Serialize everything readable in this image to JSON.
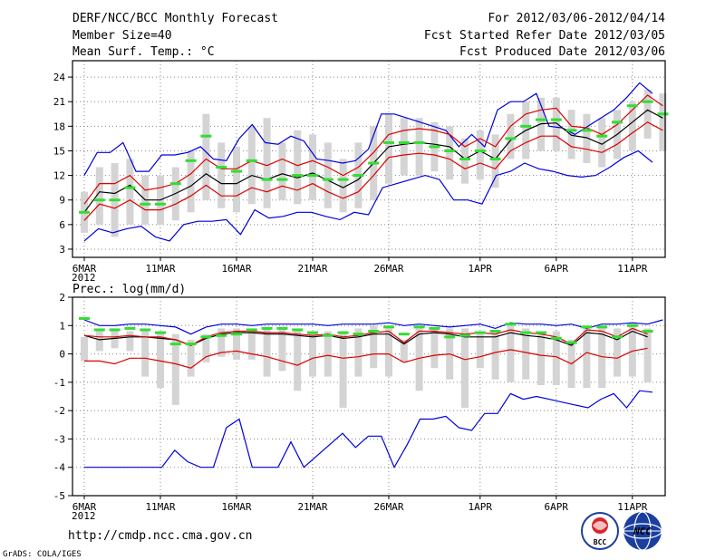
{
  "header": {
    "title": "DERF/NCC/BCC Monthly Forecast",
    "member_size": "Member Size=40",
    "for_range": "For 2012/03/06-2012/04/14",
    "fcst_started": "Fcst Started Refer Date 2012/03/05",
    "fcst_produced": "Fcst Produced Date 2012/03/06"
  },
  "footer": {
    "url": "http://cmdp.ncc.cma.gov.cn",
    "credit": "GrADS: COLA/IGES",
    "logos": [
      "BCC",
      "NCC"
    ]
  },
  "colors": {
    "max_min": "#0000dd",
    "ens_mean": "#000000",
    "spread": "#dd0000",
    "box": "#d4d4d4",
    "obs": "#33dd33"
  },
  "chart_data": [
    {
      "type": "line",
      "title": "Mean Surf. Temp.: °C",
      "x_ticks": [
        "6MAR\n2012",
        "11MAR",
        "16MAR",
        "21MAR",
        "26MAR",
        "1APR",
        "6APR",
        "11APR"
      ],
      "x_tick_days": [
        0,
        5,
        10,
        15,
        20,
        26,
        31,
        36
      ],
      "days": 40,
      "ylim": [
        2,
        26
      ],
      "yticks": [
        3,
        6,
        9,
        12,
        15,
        18,
        21,
        24
      ],
      "series": [
        {
          "name": "Ensemble Max",
          "color": "#0000dd",
          "values": [
            12,
            14.8,
            14.8,
            16,
            12.5,
            12.5,
            14.5,
            14.5,
            14.8,
            15.5,
            14,
            13.8,
            16.5,
            18.2,
            16,
            15.8,
            16.8,
            16.2,
            14,
            13.8,
            13.5,
            13.8,
            15.2,
            19.5,
            19.5,
            19,
            18.5,
            18,
            17.5,
            15.5,
            17,
            15.5,
            20,
            21,
            21,
            22,
            18,
            17.8,
            17,
            18,
            19,
            20,
            21.5,
            23.3,
            22
          ]
        },
        {
          "name": "Ensemble Min",
          "color": "#0000dd",
          "values": [
            4,
            5.5,
            5,
            5.5,
            5.8,
            4.5,
            4,
            6,
            6.4,
            6.4,
            6.6,
            4.8,
            7.8,
            6.8,
            7,
            7.5,
            7.5,
            7,
            6.6,
            7.5,
            7.2,
            10.5,
            11,
            11.5,
            12,
            11.5,
            9,
            9,
            8.5,
            12,
            12.5,
            13.5,
            12.8,
            12.5,
            12,
            11.8,
            12,
            13,
            14.2,
            15,
            13.6
          ]
        },
        {
          "name": "Ensemble Mean",
          "color": "#000000",
          "values": [
            7.5,
            10,
            9.8,
            10.8,
            9,
            9,
            9.8,
            10.7,
            12.2,
            11,
            11,
            12,
            11.5,
            12.2,
            11.7,
            12.3,
            11.4,
            10.5,
            11.5,
            13.5,
            15.5,
            15.8,
            16,
            15.8,
            15.5,
            14,
            15,
            14,
            16.3,
            17.5,
            18.3,
            18.4,
            16.9,
            16.6,
            15.8,
            17,
            18.5,
            20,
            19
          ]
        },
        {
          "name": "Mean + Std",
          "color": "#dd0000",
          "values": [
            8.5,
            11,
            11,
            12,
            10.2,
            10.5,
            11,
            12.2,
            14,
            12.8,
            12.8,
            13.8,
            13.2,
            14,
            13.2,
            13.8,
            13,
            12,
            13,
            14.8,
            17,
            17.5,
            17.7,
            17.5,
            17,
            15.5,
            16.5,
            15.5,
            18,
            19.5,
            20,
            20.2,
            18,
            17.8,
            17,
            18.2,
            20,
            21.8,
            20.5
          ]
        },
        {
          "name": "Mean - Std",
          "color": "#dd0000",
          "values": [
            6.5,
            8.5,
            8,
            9,
            7.8,
            7.8,
            8.5,
            9.5,
            10.8,
            9.5,
            9.5,
            10.5,
            10,
            10.7,
            10.2,
            11,
            10,
            9.2,
            10,
            12,
            14.2,
            14.5,
            14.7,
            14.5,
            14,
            12.8,
            13.5,
            12.8,
            15,
            16,
            16.8,
            16.8,
            15.5,
            15.2,
            14.8,
            15.8,
            17.2,
            18.5,
            17.5
          ]
        }
      ],
      "boxes": [
        {
          "day": 0,
          "low": 5,
          "high": 10
        },
        {
          "day": 1,
          "low": 6,
          "high": 13
        },
        {
          "day": 2,
          "low": 4.5,
          "high": 13.5
        },
        {
          "day": 3,
          "low": 6,
          "high": 14
        },
        {
          "day": 4,
          "low": 6,
          "high": 12
        },
        {
          "day": 5,
          "low": 6,
          "high": 12
        },
        {
          "day": 6,
          "low": 6.5,
          "high": 13
        },
        {
          "day": 7,
          "low": 7.5,
          "high": 15
        },
        {
          "day": 8,
          "low": 9,
          "high": 19.5
        },
        {
          "day": 9,
          "low": 8,
          "high": 16
        },
        {
          "day": 10,
          "low": 7.5,
          "high": 15.5
        },
        {
          "day": 11,
          "low": 8.5,
          "high": 18
        },
        {
          "day": 12,
          "low": 8,
          "high": 19
        },
        {
          "day": 13,
          "low": 9,
          "high": 16
        },
        {
          "day": 14,
          "low": 8.5,
          "high": 17.5
        },
        {
          "day": 15,
          "low": 9,
          "high": 17
        },
        {
          "day": 16,
          "low": 8,
          "high": 16
        },
        {
          "day": 17,
          "low": 7.5,
          "high": 14
        },
        {
          "day": 18,
          "low": 8,
          "high": 16
        },
        {
          "day": 19,
          "low": 9,
          "high": 18
        },
        {
          "day": 20,
          "low": 11,
          "high": 19.5
        },
        {
          "day": 21,
          "low": 12,
          "high": 19
        },
        {
          "day": 22,
          "low": 12,
          "high": 19
        },
        {
          "day": 23,
          "low": 12.5,
          "high": 18.5
        },
        {
          "day": 24,
          "low": 11.5,
          "high": 18
        },
        {
          "day": 25,
          "low": 11,
          "high": 16.5
        },
        {
          "day": 26,
          "low": 11.5,
          "high": 17.5
        },
        {
          "day": 27,
          "low": 10.5,
          "high": 17
        },
        {
          "day": 28,
          "low": 14,
          "high": 19.5
        },
        {
          "day": 29,
          "low": 14,
          "high": 21
        },
        {
          "day": 30,
          "low": 15,
          "high": 21.5
        },
        {
          "day": 31,
          "low": 15,
          "high": 21.5
        },
        {
          "day": 32,
          "low": 14,
          "high": 20
        },
        {
          "day": 33,
          "low": 13.5,
          "high": 19.5
        },
        {
          "day": 34,
          "low": 13,
          "high": 19
        },
        {
          "day": 35,
          "low": 14,
          "high": 20
        },
        {
          "day": 36,
          "low": 15,
          "high": 21
        },
        {
          "day": 37,
          "low": 16.5,
          "high": 22.5
        },
        {
          "day": 38,
          "low": 15,
          "high": 22
        }
      ],
      "obs": [
        7.5,
        9,
        9,
        10.5,
        8.5,
        8.5,
        11,
        13.8,
        16.8,
        13,
        12.5,
        13.8,
        11.5,
        11.5,
        12,
        12,
        11.5,
        11.5,
        12,
        13.5,
        16,
        16,
        16,
        15.5,
        15,
        14,
        15,
        14,
        16.5,
        18,
        18.8,
        18.8,
        17.5,
        17.5,
        16.8,
        18.5,
        20.5,
        21,
        19.5
      ]
    },
    {
      "type": "line",
      "title": "Prec.: log(mm/d)",
      "x_ticks": [
        "6MAR\n2012",
        "11MAR",
        "16MAR",
        "21MAR",
        "26MAR",
        "1APR",
        "6APR",
        "11APR"
      ],
      "x_tick_days": [
        0,
        5,
        10,
        15,
        20,
        26,
        31,
        36
      ],
      "days": 40,
      "ylim": [
        -5,
        2
      ],
      "yticks": [
        -5,
        -4,
        -3,
        -2,
        -1,
        0,
        1,
        2
      ],
      "series": [
        {
          "name": "Ensemble Max",
          "color": "#0000dd",
          "values": [
            1.2,
            1,
            1,
            1.05,
            1.05,
            1,
            0.95,
            0.7,
            0.95,
            1.05,
            1.05,
            1,
            1.05,
            1.05,
            1.05,
            1.05,
            1,
            1.05,
            1.05,
            1.05,
            1.1,
            1,
            1.05,
            1,
            0.95,
            1,
            1.05,
            0.9,
            1.1,
            1.05,
            1.05,
            1,
            1.05,
            0.9,
            1.05,
            1.05,
            1.1,
            1.05,
            1.2
          ]
        },
        {
          "name": "Ensemble Min",
          "color": "#0000dd",
          "values": [
            -4,
            -4,
            -4,
            -4,
            -4,
            -4,
            -4,
            -3.4,
            -3.8,
            -4,
            -4,
            -2.6,
            -2.3,
            -4,
            -4,
            -4,
            -3.1,
            -4,
            -3.6,
            -3.2,
            -2.8,
            -3.3,
            -2.9,
            -2.9,
            -4,
            -3.2,
            -2.3,
            -2.3,
            -2.2,
            -2.6,
            -2.7,
            -2.1,
            -2.1,
            -1.4,
            -1.6,
            -1.5,
            -1.6,
            -1.7,
            -1.8,
            -1.9,
            -1.6,
            -1.4,
            -1.9,
            -1.3,
            -1.35
          ]
        },
        {
          "name": "Ensemble Mean",
          "color": "#000000",
          "values": [
            0.65,
            0.5,
            0.55,
            0.6,
            0.6,
            0.55,
            0.5,
            0.3,
            0.55,
            0.7,
            0.75,
            0.75,
            0.7,
            0.7,
            0.65,
            0.6,
            0.65,
            0.55,
            0.6,
            0.7,
            0.7,
            0.35,
            0.7,
            0.75,
            0.7,
            0.6,
            0.6,
            0.6,
            0.75,
            0.65,
            0.6,
            0.5,
            0.3,
            0.75,
            0.7,
            0.5,
            0.8,
            0.6
          ]
        },
        {
          "name": "Mean + Std",
          "color": "#dd0000",
          "values": [
            0.65,
            0.6,
            0.6,
            0.65,
            0.6,
            0.6,
            0.5,
            0.3,
            0.6,
            0.75,
            0.8,
            0.8,
            0.75,
            0.75,
            0.7,
            0.65,
            0.7,
            0.6,
            0.65,
            0.75,
            0.8,
            0.4,
            0.8,
            0.8,
            0.75,
            0.7,
            0.75,
            0.7,
            0.85,
            0.75,
            0.7,
            0.6,
            0.35,
            0.85,
            0.8,
            0.6,
            0.9,
            0.7
          ]
        },
        {
          "name": "Mean - Std",
          "color": "#dd0000",
          "values": [
            -0.25,
            -0.25,
            -0.35,
            -0.15,
            -0.15,
            -0.25,
            -0.35,
            -0.5,
            -0.1,
            0.05,
            0.1,
            0,
            -0.1,
            -0.25,
            -0.4,
            -0.15,
            -0.05,
            -0.15,
            -0.1,
            0,
            0,
            -0.3,
            -0.15,
            -0.05,
            0,
            -0.2,
            -0.1,
            0.05,
            0.15,
            0.05,
            -0.05,
            -0.1,
            -0.35,
            0.05,
            -0.1,
            -0.15,
            0.1,
            0.2
          ]
        }
      ],
      "boxes": [
        {
          "day": 0,
          "low": -0.25,
          "high": 0.6
        },
        {
          "day": 1,
          "low": 0.1,
          "high": 0.8
        },
        {
          "day": 2,
          "low": 0.2,
          "high": 0.9
        },
        {
          "day": 3,
          "low": 0.1,
          "high": 0.8
        },
        {
          "day": 4,
          "low": -0.8,
          "high": 0.8
        },
        {
          "day": 5,
          "low": -1.2,
          "high": 0.8
        },
        {
          "day": 6,
          "low": -1.8,
          "high": 0.7
        },
        {
          "day": 7,
          "low": -0.8,
          "high": 0.5
        },
        {
          "day": 8,
          "low": -0.3,
          "high": 0.7
        },
        {
          "day": 9,
          "low": -0.1,
          "high": 0.9
        },
        {
          "day": 10,
          "low": -0.2,
          "high": 0.9
        },
        {
          "day": 11,
          "low": -0.2,
          "high": 0.9
        },
        {
          "day": 12,
          "low": -0.8,
          "high": 0.9
        },
        {
          "day": 13,
          "low": -0.6,
          "high": 0.9
        },
        {
          "day": 14,
          "low": -1.3,
          "high": 0.8
        },
        {
          "day": 15,
          "low": -0.8,
          "high": 0.8
        },
        {
          "day": 16,
          "low": -0.8,
          "high": 0.8
        },
        {
          "day": 17,
          "low": -1.9,
          "high": 0.8
        },
        {
          "day": 18,
          "low": -0.8,
          "high": 0.9
        },
        {
          "day": 19,
          "low": -0.5,
          "high": 1.0
        },
        {
          "day": 20,
          "low": -0.8,
          "high": 0.9
        },
        {
          "day": 21,
          "low": -0.3,
          "high": 0.5
        },
        {
          "day": 22,
          "low": -1.3,
          "high": 0.9
        },
        {
          "day": 23,
          "low": -0.5,
          "high": 0.9
        },
        {
          "day": 24,
          "low": -0.9,
          "high": 0.9
        },
        {
          "day": 25,
          "low": -1.9,
          "high": 0.9
        },
        {
          "day": 26,
          "low": -0.5,
          "high": 0.8
        },
        {
          "day": 27,
          "low": -0.9,
          "high": 0.8
        },
        {
          "day": 28,
          "low": -1.0,
          "high": 1.0
        },
        {
          "day": 29,
          "low": -0.9,
          "high": 0.9
        },
        {
          "day": 30,
          "low": -1.1,
          "high": 0.8
        },
        {
          "day": 31,
          "low": -1.1,
          "high": 0.8
        },
        {
          "day": 32,
          "low": -1.2,
          "high": 0.5
        },
        {
          "day": 33,
          "low": -1.2,
          "high": 1.0
        },
        {
          "day": 34,
          "low": -1.2,
          "high": 1.0
        },
        {
          "day": 35,
          "low": -0.8,
          "high": 0.9
        },
        {
          "day": 36,
          "low": -0.8,
          "high": 1.1
        },
        {
          "day": 37,
          "low": -1.0,
          "high": 0.9
        }
      ],
      "obs": [
        1.25,
        0.85,
        0.85,
        0.9,
        0.85,
        0.75,
        0.35,
        0.35,
        0.6,
        0.65,
        0.7,
        0.85,
        0.9,
        0.9,
        0.85,
        0.75,
        0.65,
        0.75,
        0.7,
        0.8,
        0.95,
        0.7,
        0.95,
        0.9,
        0.6,
        0.65,
        0.75,
        0.8,
        1.05,
        0.75,
        0.75,
        0.55,
        0.4,
        0.95,
        0.95,
        0.6,
        1.0,
        0.8
      ]
    }
  ]
}
